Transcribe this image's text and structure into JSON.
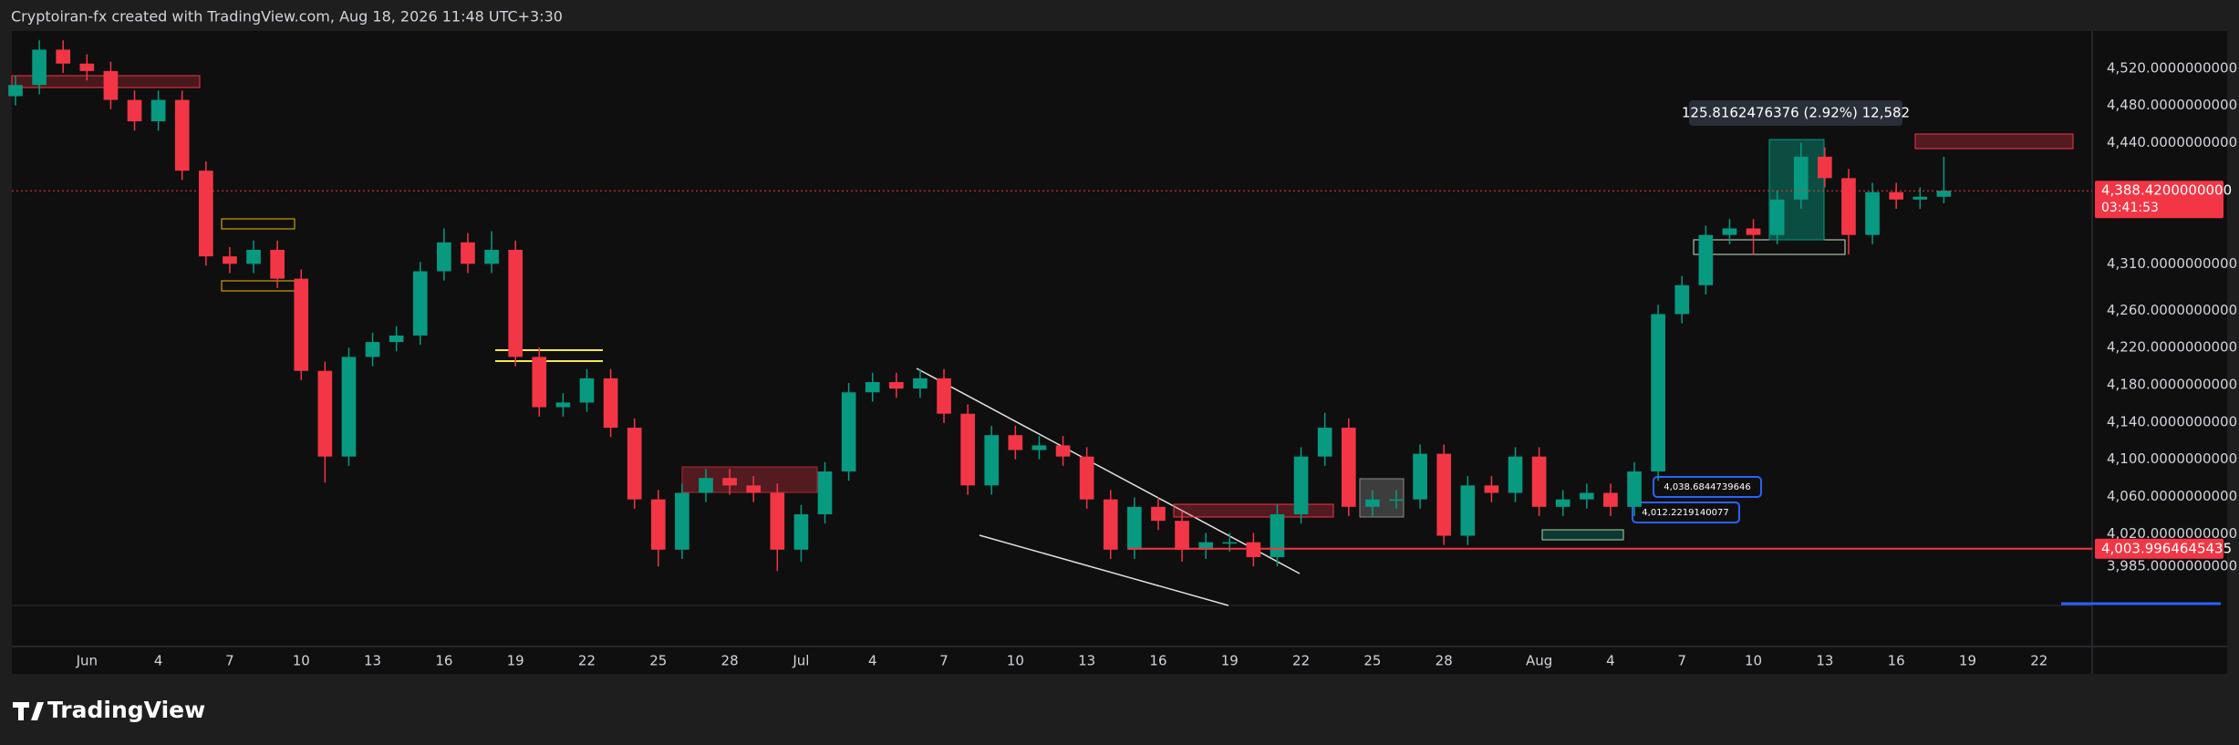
{
  "header": "Cryptoiran-fx created with TradingView.com, Aug 18, 2026 11:48 UTC+3:30",
  "footer_brand": "TradingView",
  "chart_data": {
    "type": "candlestick",
    "up_color": "#089981",
    "down_color": "#f23645",
    "x": [
      "05-29",
      "05-30",
      "05-31",
      "06-01",
      "06-02",
      "06-03",
      "06-04",
      "06-05",
      "06-06",
      "06-07",
      "06-08",
      "06-09",
      "06-10",
      "06-11",
      "06-12",
      "06-13",
      "06-14",
      "06-15",
      "06-16",
      "06-17",
      "06-18",
      "06-19",
      "06-20",
      "06-21",
      "06-22",
      "06-23",
      "06-24",
      "06-25",
      "06-26",
      "06-27",
      "06-28",
      "06-29",
      "06-30",
      "07-01",
      "07-02",
      "07-03",
      "07-04",
      "07-05",
      "07-06",
      "07-07",
      "07-08",
      "07-09",
      "07-10",
      "07-11",
      "07-12",
      "07-13",
      "07-14",
      "07-15",
      "07-16",
      "07-17",
      "07-18",
      "07-19",
      "07-20",
      "07-21",
      "07-22",
      "07-23",
      "07-24",
      "07-25",
      "07-26",
      "07-27",
      "07-28",
      "07-29",
      "07-30",
      "07-31",
      "08-01",
      "08-02",
      "08-03",
      "08-04",
      "08-05",
      "08-06",
      "08-07",
      "08-08",
      "08-09",
      "08-10",
      "08-11",
      "08-12",
      "08-13",
      "08-14",
      "08-15",
      "08-16",
      "08-17",
      "08-18"
    ],
    "open": [
      4490,
      4502,
      4540,
      4525,
      4517,
      4486,
      4463,
      4486,
      4410,
      4318,
      4310,
      4325,
      4294,
      4195,
      4103,
      4210,
      4226,
      4233,
      4302,
      4333,
      4310,
      4325,
      4210,
      4156,
      4161,
      4187,
      4134,
      4057,
      4003,
      4064,
      4080,
      4072,
      4064,
      4003,
      4041,
      4087,
      4172,
      4183,
      4176,
      4187,
      4149,
      4072,
      4126,
      4110,
      4115,
      4103,
      4057,
      4003,
      4049,
      4034,
      4003,
      4011,
      4011,
      3995,
      4041,
      4103,
      4134,
      4049,
      4057,
      4057,
      4106,
      4018,
      4072,
      4064,
      4103,
      4049,
      4057,
      4064,
      4049,
      4087,
      4256,
      4287,
      4341,
      4348,
      4341,
      4379,
      4425,
      4402,
      4341,
      4387,
      4379,
      4382
    ],
    "high": [
      4512,
      4550,
      4550,
      4535,
      4527,
      4496,
      4496,
      4496,
      4420,
      4328,
      4335,
      4335,
      4304,
      4205,
      4220,
      4236,
      4243,
      4312,
      4348,
      4343,
      4345,
      4335,
      4220,
      4171,
      4197,
      4197,
      4144,
      4067,
      4074,
      4090,
      4090,
      4082,
      4074,
      4051,
      4097,
      4182,
      4193,
      4193,
      4197,
      4197,
      4159,
      4136,
      4136,
      4125,
      4125,
      4113,
      4067,
      4059,
      4059,
      4044,
      4021,
      4021,
      4021,
      4051,
      4113,
      4150,
      4144,
      4067,
      4067,
      4116,
      4116,
      4082,
      4082,
      4113,
      4113,
      4067,
      4074,
      4074,
      4097,
      4266,
      4297,
      4351,
      4358,
      4358,
      4389,
      4440,
      4435,
      4412,
      4397,
      4397,
      4392,
      4425
    ],
    "low": [
      4480,
      4492,
      4515,
      4507,
      4476,
      4453,
      4453,
      4400,
      4308,
      4300,
      4300,
      4284,
      4185,
      4075,
      4093,
      4200,
      4216,
      4223,
      4292,
      4300,
      4300,
      4200,
      4146,
      4146,
      4151,
      4124,
      4047,
      3985,
      3993,
      4054,
      4062,
      4054,
      3980,
      3990,
      4031,
      4077,
      4162,
      4166,
      4166,
      4139,
      4062,
      4062,
      4100,
      4100,
      4093,
      4047,
      3993,
      3993,
      4024,
      3990,
      3993,
      4001,
      3985,
      3985,
      4031,
      4093,
      4039,
      4039,
      4047,
      4047,
      4008,
      4008,
      4054,
      4054,
      4039,
      4039,
      4047,
      4039,
      4039,
      4077,
      4246,
      4277,
      4331,
      4320,
      4331,
      4369,
      4392,
      4320,
      4331,
      4369,
      4369,
      4375
    ],
    "close": [
      4502,
      4540,
      4525,
      4517,
      4486,
      4463,
      4486,
      4410,
      4318,
      4310,
      4325,
      4294,
      4195,
      4103,
      4210,
      4226,
      4233,
      4302,
      4333,
      4310,
      4325,
      4210,
      4156,
      4161,
      4187,
      4134,
      4057,
      4003,
      4064,
      4080,
      4072,
      4064,
      4003,
      4041,
      4087,
      4172,
      4183,
      4176,
      4187,
      4149,
      4072,
      4126,
      4110,
      4115,
      4103,
      4057,
      4003,
      4049,
      4034,
      4003,
      4011,
      4011,
      3995,
      4041,
      4103,
      4134,
      4049,
      4057,
      4057,
      4106,
      4018,
      4072,
      4064,
      4103,
      4049,
      4057,
      4064,
      4049,
      4087,
      4256,
      4287,
      4341,
      4348,
      4341,
      4379,
      4425,
      4402,
      4341,
      4387,
      4379,
      4382,
      4388.42
    ],
    "xlim": [
      "05-29",
      "08-24"
    ],
    "ylim": [
      3899,
      4560
    ],
    "grid": false,
    "xticks": [
      {
        "value": "06-01",
        "label": "Jun"
      },
      {
        "value": "06-04",
        "label": "4"
      },
      {
        "value": "06-07",
        "label": "7"
      },
      {
        "value": "06-10",
        "label": "10"
      },
      {
        "value": "06-13",
        "label": "13"
      },
      {
        "value": "06-16",
        "label": "16"
      },
      {
        "value": "06-19",
        "label": "19"
      },
      {
        "value": "06-22",
        "label": "22"
      },
      {
        "value": "06-25",
        "label": "25"
      },
      {
        "value": "06-28",
        "label": "28"
      },
      {
        "value": "07-01",
        "label": "Jul"
      },
      {
        "value": "07-04",
        "label": "4"
      },
      {
        "value": "07-07",
        "label": "7"
      },
      {
        "value": "07-10",
        "label": "10"
      },
      {
        "value": "07-13",
        "label": "13"
      },
      {
        "value": "07-16",
        "label": "16"
      },
      {
        "value": "07-19",
        "label": "19"
      },
      {
        "value": "07-22",
        "label": "22"
      },
      {
        "value": "07-25",
        "label": "25"
      },
      {
        "value": "07-28",
        "label": "28"
      },
      {
        "value": "08-01",
        "label": "Aug"
      },
      {
        "value": "08-04",
        "label": "4"
      },
      {
        "value": "08-07",
        "label": "7"
      },
      {
        "value": "08-10",
        "label": "10"
      },
      {
        "value": "08-13",
        "label": "13"
      },
      {
        "value": "08-16",
        "label": "16"
      },
      {
        "value": "08-19",
        "label": "19"
      },
      {
        "value": "08-22",
        "label": "22"
      }
    ],
    "yticks": [
      {
        "value": 4520,
        "label": "4,520.0000000000"
      },
      {
        "value": 4480,
        "label": "4,480.0000000000"
      },
      {
        "value": 4440,
        "label": "4,440.0000000000"
      },
      {
        "value": 4310,
        "label": "4,310.0000000000"
      },
      {
        "value": 4260,
        "label": "4,260.0000000000"
      },
      {
        "value": 4220,
        "label": "4,220.0000000000"
      },
      {
        "value": 4180,
        "label": "4,180.0000000000"
      },
      {
        "value": 4140,
        "label": "4,140.0000000000"
      },
      {
        "value": 4100,
        "label": "4,100.0000000000"
      },
      {
        "value": 4060,
        "label": "4,060.0000000000"
      },
      {
        "value": 4020,
        "label": "4,020.0000000000"
      },
      {
        "value": 3985,
        "label": "3,985.0000000000"
      }
    ],
    "last_price": {
      "value": 4388.42,
      "label": "4,388.4200000000"
    },
    "countdown": "03:41:53",
    "level": {
      "value": 4003.9964645435,
      "label": "4,003.9964645435"
    },
    "measure_label": "125.8162476376 (2.92%) 12,582",
    "annotations": [
      "4,038.6844739646",
      "4,012.2219140077"
    ]
  }
}
